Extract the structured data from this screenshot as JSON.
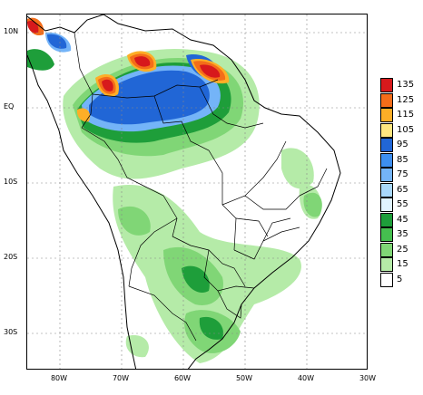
{
  "map": {
    "lat_ticks": [
      "10N",
      "EQ",
      "10S",
      "20S",
      "30S"
    ],
    "lon_ticks": [
      "80W",
      "70W",
      "60W",
      "50W",
      "40W",
      "30W"
    ]
  },
  "legend": {
    "values": [
      "135",
      "125",
      "115",
      "105",
      "95",
      "85",
      "75",
      "65",
      "55",
      "45",
      "35",
      "25",
      "15",
      "5"
    ],
    "colors": [
      "#d7191c",
      "#f46d19",
      "#fdae27",
      "#ffe680",
      "#2166d6",
      "#3d8ff0",
      "#74b4f8",
      "#a9d8fb",
      "#e0f3ff",
      "#1e9e3a",
      "#45bf4f",
      "#80d676",
      "#b5eba8",
      "#ffffff"
    ]
  },
  "colors": {
    "heavy": "#d7191c",
    "orange": "#f46d19",
    "yellow": "#fdae27",
    "blue": "#2166d6",
    "lightblue": "#74b4f8",
    "green": "#1e9e3a",
    "lightgreen": "#80d676",
    "palegreen": "#b5eba8"
  }
}
